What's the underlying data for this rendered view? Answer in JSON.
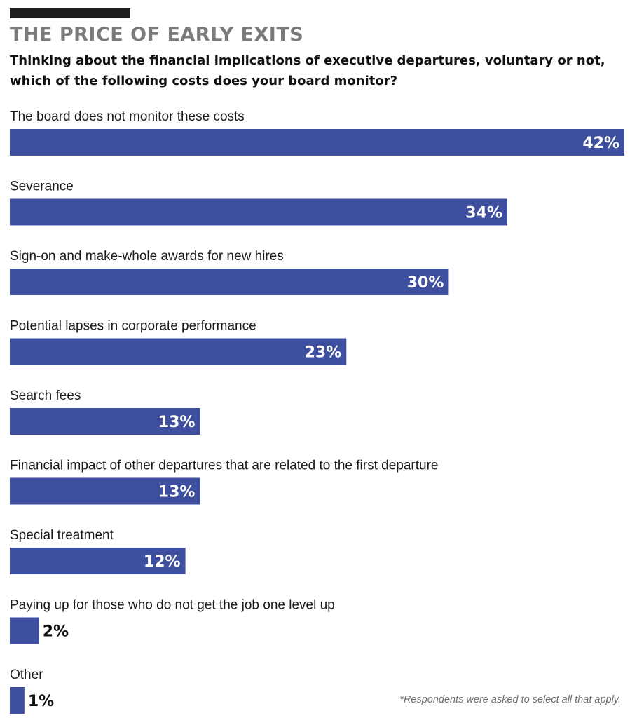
{
  "title": "THE PRICE OF EARLY EXITS",
  "subtitle": "Thinking about the financial implications of executive departures, voluntary or not, which of the following costs does your board monitor?",
  "footnote": "*Respondents were asked to select all that apply.",
  "chart_data": {
    "type": "bar",
    "orientation": "horizontal",
    "categories": [
      "The board does not monitor these costs",
      "Severance",
      "Sign-on and make-whole awards for new hires",
      "Potential lapses in corporate performance",
      "Search fees",
      "Financial impact of other departures that are related to the first departure",
      "Special treatment",
      "Paying up for those who do not get the job one level up",
      "Other"
    ],
    "values": [
      42,
      34,
      30,
      23,
      13,
      13,
      12,
      2,
      1
    ],
    "value_labels": [
      "42%",
      "34%",
      "30%",
      "23%",
      "13%",
      "13%",
      "12%",
      "2%",
      "1%"
    ],
    "unit": "%",
    "xlim": [
      0,
      42
    ],
    "bar_color": "#3f4fa0",
    "label_inside_color": "#ffffff",
    "label_outside_color": "#111111",
    "grid": false,
    "legend": "none"
  }
}
